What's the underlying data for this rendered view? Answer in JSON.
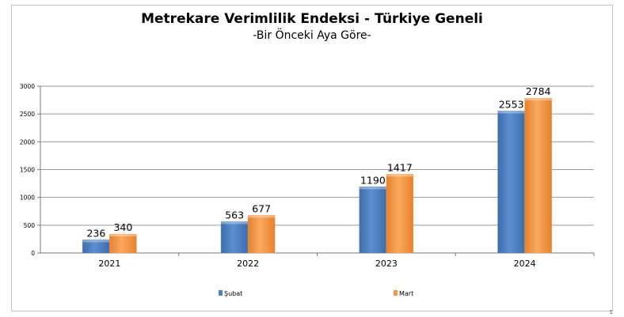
{
  "chart_data": {
    "type": "bar",
    "title": "Metrekare Verimlilik Endeksi - Türkiye Geneli",
    "subtitle": "-Bir Önceki Aya Göre-",
    "categories": [
      "2021",
      "2022",
      "2023",
      "2024"
    ],
    "series": [
      {
        "name": "Şubat",
        "values": [
          236,
          563,
          1190,
          2553
        ],
        "color": "#4f81bd"
      },
      {
        "name": "Mart",
        "values": [
          340,
          677,
          1417,
          2784
        ],
        "color": "#f79646"
      }
    ],
    "ylim": [
      0,
      3000
    ],
    "yticks": [
      0,
      500,
      1000,
      1500,
      2000,
      2500,
      3000
    ],
    "grid": true,
    "legend": "bottom"
  },
  "corner_mark": "1"
}
